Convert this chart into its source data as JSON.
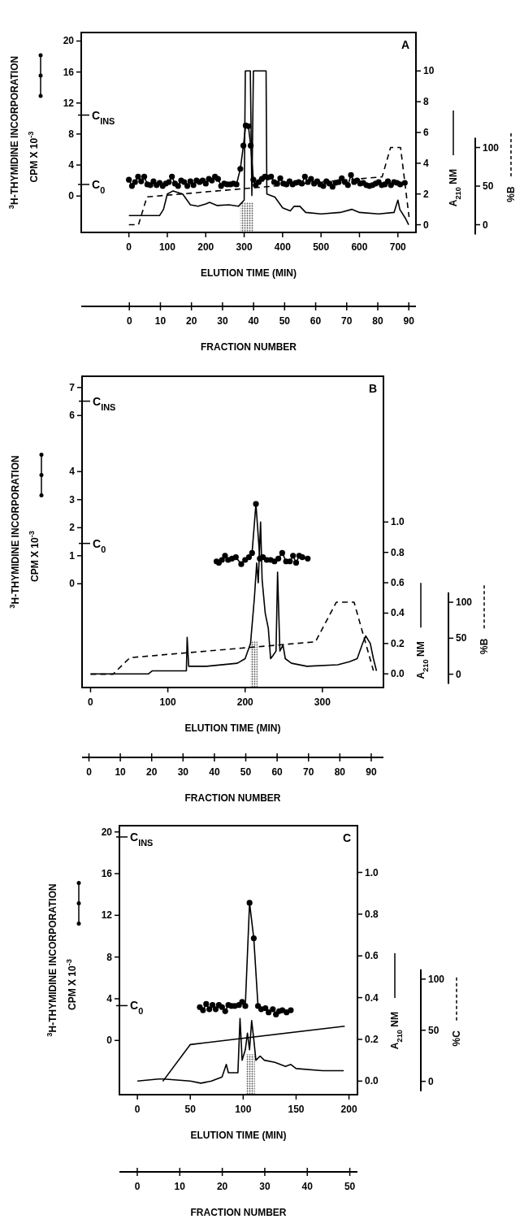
{
  "chart_data": [
    {
      "type": "line",
      "xlabel": "ELUTION TIME (MIN)",
      "ylabel": "$^{3}$H-THYMIDINE INCORPORATION\nCPM X 10$^{-3}$",
      "y2label": "A$_{210}$ NM",
      "y3label": "%B",
      "x2label": "FRACTION NUMBER",
      "annotations": [
        "A",
        "C$_{INS}$",
        "C$_{0}$"
      ],
      "xlim": [
        -124,
        747
      ],
      "xticks": [
        0,
        100,
        200,
        300,
        400,
        500,
        600,
        700
      ],
      "ylim": [
        -4.7,
        21.1
      ],
      "yticks": [
        0,
        4,
        8,
        12,
        16,
        20
      ],
      "y2lim": [
        -0.5,
        12.5
      ],
      "y2ticks": [
        0,
        2,
        4,
        6,
        8,
        10
      ],
      "y3lim": [
        -10,
        249
      ],
      "y3ticks": [
        0,
        50,
        100
      ],
      "x2lim": [
        -15.5,
        92.3
      ],
      "x2ticks": [
        0,
        10,
        20,
        30,
        40,
        50,
        60,
        70,
        80,
        90
      ],
      "bands": [
        {
          "axis": "x",
          "from": 290,
          "to": 324,
          "color": "#555555"
        }
      ],
      "series": [
        {
          "color": "#000000",
          "marker": "circle",
          "x": [
            0,
            8,
            16,
            24,
            32,
            40,
            48,
            56,
            64,
            72,
            80,
            88,
            96,
            104,
            112,
            120,
            128,
            136,
            144,
            152,
            160,
            168,
            176,
            184,
            192,
            200,
            208,
            216,
            224,
            232,
            240,
            248,
            256,
            264,
            272,
            280,
            290,
            298,
            304,
            311,
            317,
            324,
            330,
            338,
            346,
            354,
            362,
            370,
            378,
            386,
            394,
            402,
            410,
            418,
            426,
            434,
            442,
            450,
            458,
            466,
            474,
            482,
            490,
            498,
            506,
            514,
            522,
            530,
            538,
            546,
            554,
            562,
            570,
            578,
            586,
            594,
            602,
            610,
            618,
            626,
            634,
            642,
            650,
            658,
            666,
            674,
            682,
            690,
            698,
            706,
            718
          ],
          "values": [
            2.1,
            1.3,
            1.8,
            2.5,
            1.9,
            2.5,
            1.5,
            1.4,
            1.9,
            1.4,
            1.7,
            1.3,
            1.6,
            1.8,
            2.5,
            1.6,
            1.3,
            2.0,
            1.8,
            1.3,
            1.9,
            1.4,
            2.0,
            1.8,
            2.0,
            1.6,
            2.2,
            2.0,
            2.5,
            2.2,
            1.3,
            1.6,
            1.5,
            1.5,
            1.6,
            1.5,
            3.5,
            6.5,
            9.1,
            9.0,
            6.5,
            2.1,
            1.4,
            1.8,
            2.2,
            2.5,
            2.4,
            2.5,
            1.8,
            1.6,
            2.3,
            1.6,
            1.5,
            1.9,
            1.5,
            1.7,
            1.8,
            1.6,
            2.5,
            1.8,
            2.2,
            1.6,
            1.9,
            1.5,
            1.3,
            1.9,
            1.6,
            1.2,
            1.7,
            1.8,
            2.3,
            1.8,
            1.4,
            2.7,
            1.8,
            2.0,
            1.6,
            1.7,
            1.4,
            1.3,
            1.4,
            1.6,
            1.8,
            1.4,
            1.5,
            1.9,
            1.4,
            1.8,
            1.7,
            1.5,
            1.7
          ]
        },
        {
          "color": "#000000",
          "axis": "y2",
          "line_style": "solid",
          "x": [
            0,
            80,
            90,
            100,
            115,
            140,
            160,
            180,
            200,
            210,
            230,
            260,
            285,
            300,
            303,
            316,
            320,
            324,
            357,
            359,
            380,
            400,
            420,
            430,
            445,
            460,
            500,
            550,
            580,
            600,
            650,
            690,
            700,
            705,
            720,
            728
          ],
          "values": [
            0.6,
            0.6,
            1.0,
            2.0,
            2.2,
            2.0,
            1.3,
            1.2,
            1.35,
            1.45,
            1.25,
            1.3,
            1.2,
            1.6,
            10,
            10,
            1.9,
            10,
            10,
            2.0,
            1.8,
            1.1,
            0.9,
            1.2,
            1.2,
            0.8,
            0.7,
            0.8,
            1.0,
            0.8,
            0.7,
            0.8,
            1.6,
            1.0,
            0.4,
            0.0
          ]
        },
        {
          "color": "#000000",
          "axis": "y3",
          "line_style": "dashed",
          "x": [
            0,
            25,
            47,
            659,
            681,
            707,
            729
          ],
          "values": [
            0,
            0,
            36,
            62,
            100,
            100,
            10
          ]
        }
      ]
    },
    {
      "type": "line",
      "xlabel": "ELUTION TIME (MIN)",
      "ylabel": "$^{3}$H-THYMIDINE INCORPORATION\nCPM X 10$^{-3}$",
      "y2label": "A$_{210}$ NM",
      "y3label": "%B",
      "x2label": "FRACTION NUMBER",
      "annotations": [
        "B",
        "C$_{INS}$",
        "C$_{0}$"
      ],
      "xlim": [
        -11,
        379
      ],
      "xticks": [
        0,
        100,
        200,
        300
      ],
      "ylim": [
        -3.7,
        7.4
      ],
      "yticks": [
        0,
        1,
        2,
        3,
        4,
        6,
        7
      ],
      "y2lim": [
        -0.09,
        1.96
      ],
      "y2ticks": [
        {
          "value": 0,
          "label": "0.0"
        },
        {
          "value": 0.2,
          "label": "0.2"
        },
        {
          "value": 0.4,
          "label": "0.4"
        },
        {
          "value": 0.6,
          "label": "0.6"
        },
        {
          "value": 0.8,
          "label": "0.8"
        },
        {
          "value": 1,
          "label": "1.0"
        }
      ],
      "y3lim": [
        -18.5,
        414
      ],
      "y3ticks": [
        0,
        50,
        100
      ],
      "x2lim": [
        -2.2,
        93.9
      ],
      "x2ticks": [
        0,
        10,
        20,
        30,
        40,
        50,
        60,
        70,
        80,
        90
      ],
      "bands": [
        {
          "axis": "x",
          "from": 207,
          "to": 216,
          "color": "#555555"
        }
      ],
      "series": [
        {
          "color": "#000000",
          "marker": "circle",
          "x": [
            163,
            166,
            170,
            174,
            178,
            183,
            188,
            195,
            200,
            205,
            209,
            214,
            219,
            223,
            228,
            233,
            238,
            243,
            248,
            253,
            258,
            262,
            266,
            270,
            274,
            281
          ],
          "values": [
            0.8,
            0.75,
            0.85,
            1.0,
            0.85,
            0.9,
            0.95,
            0.7,
            0.85,
            0.95,
            1.1,
            2.85,
            0.9,
            0.95,
            0.85,
            0.85,
            0.8,
            0.9,
            1.1,
            0.8,
            0.8,
            1.0,
            0.75,
            1.0,
            0.95,
            0.9
          ]
        },
        {
          "color": "#000000",
          "axis": "y2",
          "line_style": "solid",
          "x": [
            0,
            75,
            80,
            120,
            124,
            125,
            127,
            150,
            190,
            200,
            207,
            212,
            215,
            217,
            220,
            222,
            226,
            230,
            233,
            236,
            240,
            242,
            245,
            249,
            252,
            260,
            280,
            320,
            335,
            345,
            352,
            356,
            362,
            366,
            370
          ],
          "values": [
            0,
            0,
            0.02,
            0.02,
            0.02,
            0.24,
            0.05,
            0.05,
            0.07,
            0.1,
            0.2,
            0.5,
            0.73,
            0.6,
            1.0,
            0.62,
            0.4,
            0.3,
            0.1,
            0.12,
            0.15,
            0.67,
            0.15,
            0.19,
            0.1,
            0.07,
            0.05,
            0.06,
            0.08,
            0.1,
            0.2,
            0.25,
            0.2,
            0.1,
            0.02
          ]
        },
        {
          "color": "#000000",
          "axis": "y3",
          "line_style": "dashed",
          "x": [
            0,
            29,
            51,
            291,
            318,
            341,
            366
          ],
          "values": [
            0,
            0,
            23,
            45,
            100,
            100,
            5
          ]
        }
      ]
    },
    {
      "type": "line",
      "xlabel": "ELUTION TIME (MIN)",
      "ylabel": "$^{3}$H-THYMIDINE INCORPORATION\nCPM X 10$^{-3}$",
      "y2label": "A$_{210}$ NM",
      "y3label": "%C",
      "x2label": "FRACTION NUMBER",
      "annotations": [
        "C",
        "C$_{INS}$",
        "C$_{0}$"
      ],
      "xlim": [
        -17,
        208
      ],
      "xticks": [
        0,
        50,
        100,
        150,
        200
      ],
      "ylim": [
        -5.2,
        20.6
      ],
      "yticks": [
        0,
        4,
        8,
        12,
        16,
        20
      ],
      "y2lim": [
        -0.065,
        1.224
      ],
      "y2ticks": [
        {
          "value": 0,
          "label": "0.0"
        },
        {
          "value": 0.2,
          "label": "0.2"
        },
        {
          "value": 0.4,
          "label": "0.4"
        },
        {
          "value": 0.6,
          "label": "0.6"
        },
        {
          "value": 0.8,
          "label": "0.8"
        },
        {
          "value": 1,
          "label": "1.0"
        }
      ],
      "y3lim": [
        -13,
        250
      ],
      "y3ticks": [
        0,
        50,
        100
      ],
      "x2lim": [
        -4.2,
        51.8
      ],
      "x2ticks": [
        0,
        10,
        20,
        30,
        40,
        50
      ],
      "bands": [
        {
          "axis": "x",
          "from": 103,
          "to": 111,
          "color": "#555555"
        }
      ],
      "series": [
        {
          "color": "#000000",
          "marker": "circle",
          "x": [
            59,
            62,
            65,
            68,
            71,
            74,
            77,
            80,
            83,
            86,
            89,
            92,
            96,
            99,
            102,
            106,
            110,
            114,
            117,
            121,
            124,
            128,
            131,
            134,
            137,
            141,
            145
          ],
          "values": [
            3.2,
            2.9,
            3.5,
            3.0,
            3.4,
            3.0,
            3.4,
            3.2,
            2.8,
            3.4,
            3.3,
            3.3,
            3.4,
            3.7,
            3.3,
            13.2,
            9.8,
            3.3,
            3.0,
            3.1,
            2.7,
            3.0,
            2.5,
            2.8,
            2.9,
            2.7,
            2.9
          ]
        },
        {
          "color": "#000000",
          "axis": "y2",
          "line_style": "solid",
          "x": [
            0,
            20,
            25,
            50,
            60,
            70,
            80,
            84,
            86,
            95,
            97,
            99,
            102,
            104,
            106,
            108,
            110,
            112,
            116,
            120,
            130,
            140,
            145,
            150,
            175,
            195
          ],
          "values": [
            0,
            0.01,
            0.01,
            0,
            -0.01,
            0,
            0.02,
            0.08,
            0.04,
            0.04,
            0.3,
            0.1,
            0.15,
            0.23,
            0.15,
            0.29,
            0.2,
            0.1,
            0.12,
            0.1,
            0.09,
            0.07,
            0.08,
            0.06,
            0.05,
            0.05
          ]
        },
        {
          "color": "#000000",
          "axis": "y3",
          "line_style": "solid",
          "x": [
            24,
            50,
            196
          ],
          "values": [
            0,
            36,
            54
          ]
        }
      ]
    }
  ]
}
